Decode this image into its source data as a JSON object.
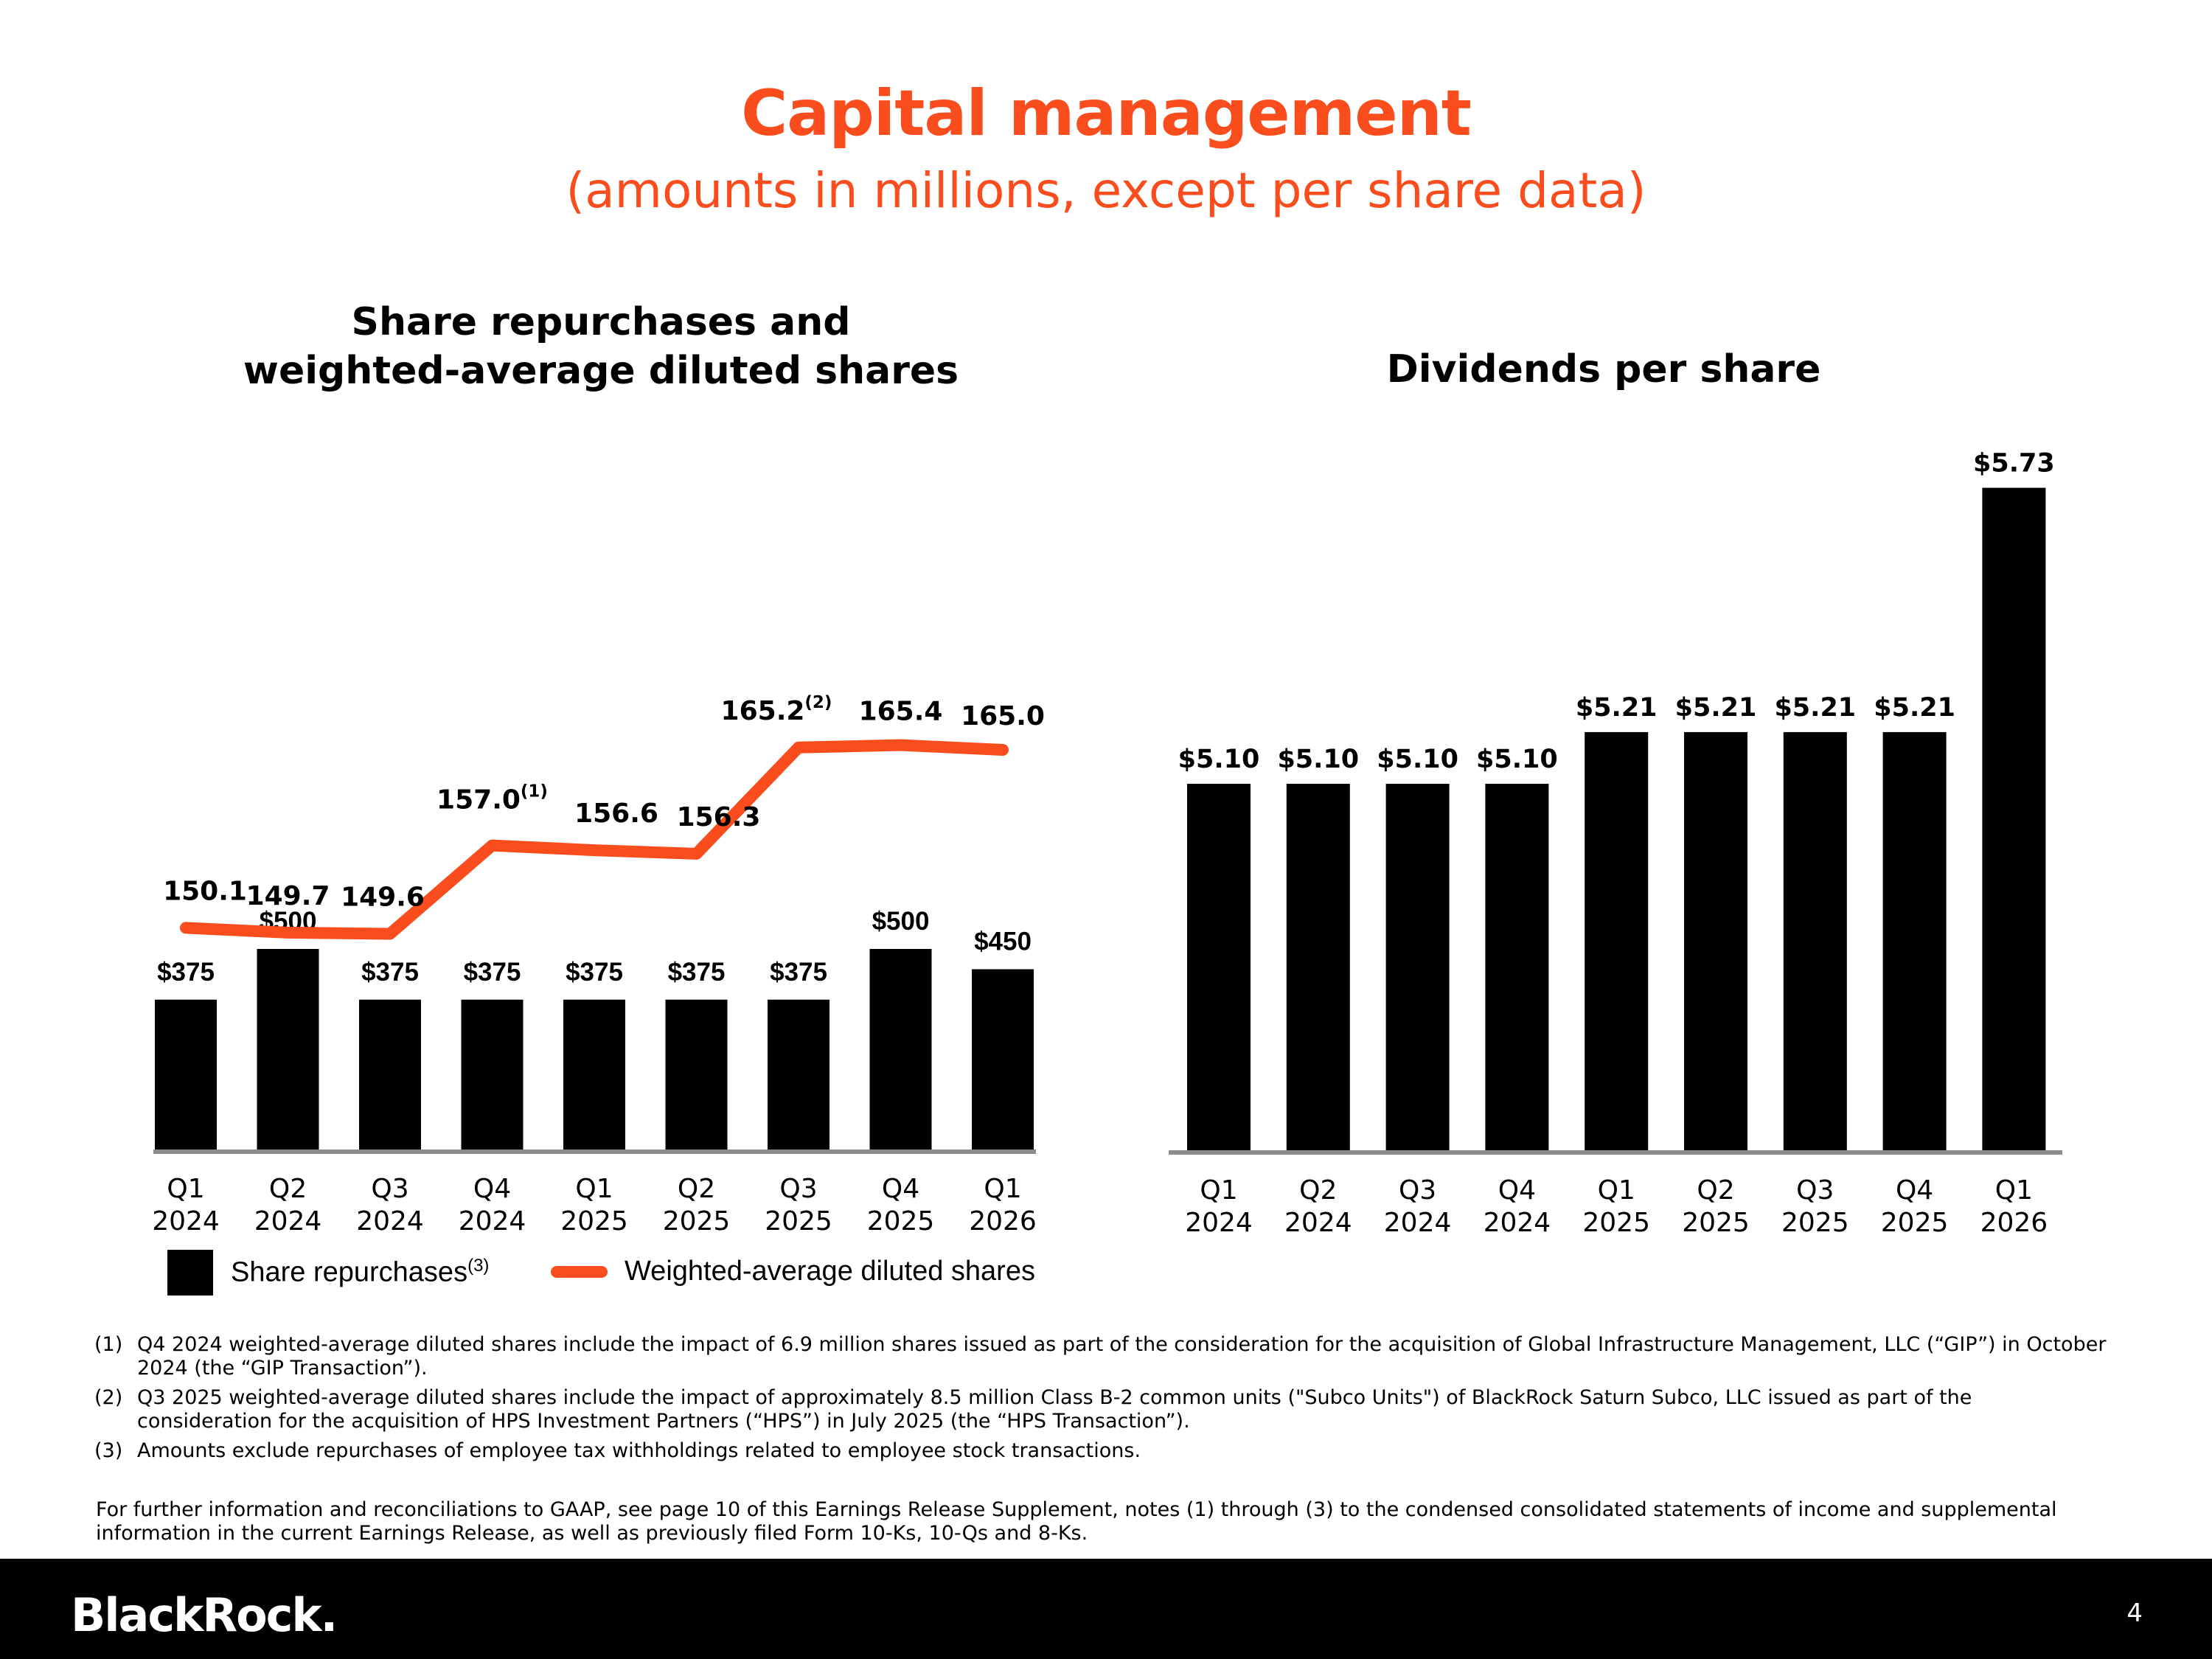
{
  "colors": {
    "accent": "#fa4d1e",
    "bars": "#000000",
    "axis": "#8c8c8c",
    "footer": "#000000"
  },
  "header": {
    "title": "Capital management",
    "subtitle": "(amounts in millions, except per share data)"
  },
  "left_chart_title_line1": "Share repurchases and",
  "left_chart_title_line2": "weighted-average diluted shares",
  "right_chart_title": "Dividends per share",
  "legend": {
    "repurchases": "Share repurchases",
    "repurchases_sup": "(3)",
    "shares": "Weighted-average diluted shares"
  },
  "chart_data": [
    {
      "type": "bar",
      "title": "Share repurchases and weighted-average diluted shares",
      "categories": [
        "Q1 2024",
        "Q2 2024",
        "Q3 2024",
        "Q4 2024",
        "Q1 2025",
        "Q2 2025",
        "Q3 2025",
        "Q4 2025",
        "Q1 2026"
      ],
      "series": [
        {
          "name": "Share repurchases",
          "kind": "bar",
          "values": [
            375,
            500,
            375,
            375,
            375,
            375,
            375,
            500,
            450
          ],
          "labels": [
            "$375",
            "$500",
            "$375",
            "$375",
            "$375",
            "$375",
            "$375",
            "$500",
            "$450"
          ]
        },
        {
          "name": "Weighted-average diluted shares",
          "kind": "line",
          "values": [
            150.1,
            149.7,
            149.6,
            157.0,
            156.6,
            156.3,
            165.2,
            165.4,
            165.0
          ],
          "labels": [
            "150.1",
            "149.7",
            "149.6",
            "157.0",
            "156.6",
            "156.3",
            "165.2",
            "165.4",
            "165.0"
          ],
          "label_notes": [
            "",
            "",
            "",
            "(1)",
            "",
            "",
            "(2)",
            "",
            ""
          ]
        }
      ],
      "legend": "bottom"
    },
    {
      "type": "bar",
      "title": "Dividends per share",
      "categories": [
        "Q1 2024",
        "Q2 2024",
        "Q3 2024",
        "Q4 2024",
        "Q1 2025",
        "Q2 2025",
        "Q3 2025",
        "Q4 2025",
        "Q1 2026"
      ],
      "series": [
        {
          "values": [
            5.1,
            5.1,
            5.1,
            5.1,
            5.21,
            5.21,
            5.21,
            5.21,
            5.73
          ],
          "labels": [
            "$5.10",
            "$5.10",
            "$5.10",
            "$5.10",
            "$5.21",
            "$5.21",
            "$5.21",
            "$5.21",
            "$5.73"
          ]
        }
      ]
    }
  ],
  "footnotes": [
    {
      "mark": "(1)",
      "text": "Q4 2024 weighted-average diluted shares include the impact of 6.9 million shares issued as part of the consideration for the acquisition of Global Infrastructure Management, LLC (“GIP”) in October 2024 (the “GIP Transaction”)."
    },
    {
      "mark": "(2)",
      "text": "Q3 2025 weighted-average diluted shares include the impact of approximately 8.5 million Class B-2 common units (\"Subco Units\") of BlackRock Saturn Subco, LLC issued as part of the consideration for the acquisition of HPS Investment Partners (“HPS”) in July 2025 (the “HPS Transaction”)."
    },
    {
      "mark": "(3)",
      "text": "Amounts exclude repurchases of employee tax withholdings related to employee stock transactions."
    }
  ],
  "further_info": "For further information and reconciliations to GAAP, see page 10 of this Earnings Release Supplement, notes (1) through (3) to the condensed consolidated statements of income and supplemental information in the current Earnings Release, as well as previously filed Form 10-Ks, 10-Qs and 8-Ks.",
  "footer": {
    "logo": "BlackRock.",
    "page": "4"
  }
}
